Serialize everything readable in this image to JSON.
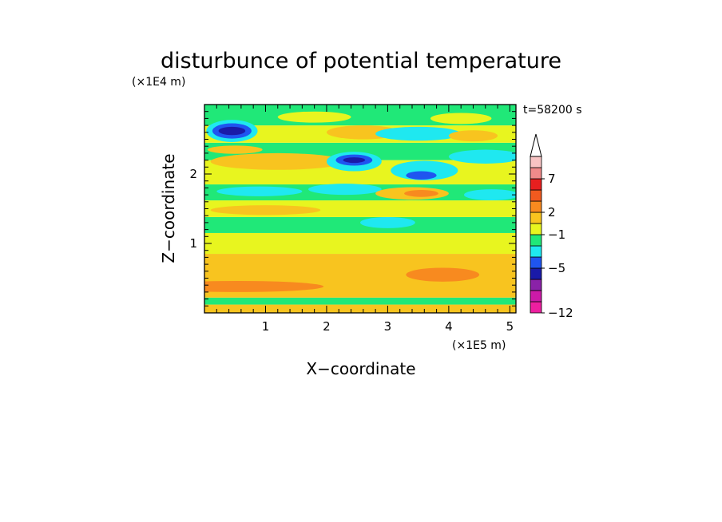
{
  "chart_data": {
    "type": "heatmap",
    "title": "disturbunce of potential temperature",
    "time_label": "t=58200 s",
    "xlabel": "X−coordinate",
    "ylabel": "Z−coordinate",
    "x_scale_label": "(×1E5 m)",
    "y_scale_label": "(×1E4 m)",
    "xlim": [
      0,
      5.1
    ],
    "ylim": [
      0,
      3.0
    ],
    "x_ticks": [
      {
        "value": 1,
        "label": "1"
      },
      {
        "value": 2,
        "label": "2"
      },
      {
        "value": 3,
        "label": "3"
      },
      {
        "value": 4,
        "label": "4"
      },
      {
        "value": 5,
        "label": "5"
      }
    ],
    "y_ticks": [
      {
        "value": 1,
        "label": "1"
      },
      {
        "value": 2,
        "label": "2"
      }
    ],
    "colorbar": {
      "levels": [
        {
          "color": "#ee1fa0"
        },
        {
          "color": "#cc1aa8"
        },
        {
          "color": "#8a22a8"
        },
        {
          "color": "#1a1aa8"
        },
        {
          "color": "#1f55f0"
        },
        {
          "color": "#1fe8f0"
        },
        {
          "color": "#20e878"
        },
        {
          "color": "#e8f51f"
        },
        {
          "color": "#f8c41f"
        },
        {
          "color": "#f88a1f"
        },
        {
          "color": "#f05a1f"
        },
        {
          "color": "#e81f1f"
        },
        {
          "color": "#f08a8a"
        },
        {
          "color": "#f8c4c4"
        }
      ],
      "labels": [
        {
          "boundary": 0,
          "label": "−12"
        },
        {
          "boundary": 4,
          "label": "−5"
        },
        {
          "boundary": 7,
          "label": "−1"
        },
        {
          "boundary": 9,
          "label": "2"
        },
        {
          "boundary": 12,
          "label": "7"
        }
      ],
      "extend": "max"
    },
    "bands": [
      {
        "y": [
          0.0,
          0.12
        ],
        "color": "#f8c41f"
      },
      {
        "y": [
          0.12,
          0.22
        ],
        "color": "#20e878"
      },
      {
        "y": [
          0.22,
          0.85
        ],
        "color": "#f8c41f"
      },
      {
        "y": [
          0.85,
          1.15
        ],
        "color": "#e8f51f"
      },
      {
        "y": [
          1.15,
          1.38
        ],
        "color": "#20e878"
      },
      {
        "y": [
          1.38,
          1.62
        ],
        "color": "#e8f51f"
      },
      {
        "y": [
          1.62,
          1.85
        ],
        "color": "#20e878"
      },
      {
        "y": [
          1.85,
          2.2
        ],
        "color": "#e8f51f"
      },
      {
        "y": [
          2.2,
          2.45
        ],
        "color": "#20e878"
      },
      {
        "y": [
          2.45,
          2.7
        ],
        "color": "#e8f51f"
      },
      {
        "y": [
          2.7,
          3.0
        ],
        "color": "#20e878"
      }
    ],
    "blobs": [
      {
        "x": 0.55,
        "y": 0.38,
        "rx": 1.4,
        "ry": 0.08,
        "color": "#f88a1f"
      },
      {
        "x": 3.9,
        "y": 0.55,
        "rx": 0.6,
        "ry": 0.1,
        "color": "#f88a1f"
      },
      {
        "x": 1.0,
        "y": 1.48,
        "rx": 0.9,
        "ry": 0.07,
        "color": "#f8c41f"
      },
      {
        "x": 3.0,
        "y": 1.3,
        "rx": 0.45,
        "ry": 0.08,
        "color": "#1fe8f0"
      },
      {
        "x": 0.9,
        "y": 1.75,
        "rx": 0.7,
        "ry": 0.07,
        "color": "#1fe8f0"
      },
      {
        "x": 2.3,
        "y": 1.78,
        "rx": 0.6,
        "ry": 0.08,
        "color": "#1fe8f0"
      },
      {
        "x": 3.4,
        "y": 1.72,
        "rx": 0.6,
        "ry": 0.09,
        "color": "#f8c41f"
      },
      {
        "x": 3.55,
        "y": 1.72,
        "rx": 0.28,
        "ry": 0.05,
        "color": "#f88a1f"
      },
      {
        "x": 4.7,
        "y": 1.7,
        "rx": 0.45,
        "ry": 0.08,
        "color": "#1fe8f0"
      },
      {
        "x": 1.2,
        "y": 2.18,
        "rx": 1.1,
        "ry": 0.12,
        "color": "#f8c41f"
      },
      {
        "x": 3.6,
        "y": 2.05,
        "rx": 0.55,
        "ry": 0.14,
        "color": "#1fe8f0"
      },
      {
        "x": 3.55,
        "y": 1.98,
        "rx": 0.25,
        "ry": 0.06,
        "color": "#1f55f0"
      },
      {
        "x": 2.45,
        "y": 2.18,
        "rx": 0.45,
        "ry": 0.14,
        "color": "#1fe8f0"
      },
      {
        "x": 2.45,
        "y": 2.2,
        "rx": 0.3,
        "ry": 0.08,
        "color": "#1f55f0"
      },
      {
        "x": 2.45,
        "y": 2.2,
        "rx": 0.18,
        "ry": 0.04,
        "color": "#1a1aa8"
      },
      {
        "x": 4.6,
        "y": 2.25,
        "rx": 0.6,
        "ry": 0.1,
        "color": "#1fe8f0"
      },
      {
        "x": 0.5,
        "y": 2.35,
        "rx": 0.45,
        "ry": 0.06,
        "color": "#f8c41f"
      },
      {
        "x": 2.6,
        "y": 2.6,
        "rx": 0.6,
        "ry": 0.1,
        "color": "#f8c41f"
      },
      {
        "x": 3.5,
        "y": 2.58,
        "rx": 0.7,
        "ry": 0.1,
        "color": "#1fe8f0"
      },
      {
        "x": 4.4,
        "y": 2.55,
        "rx": 0.4,
        "ry": 0.08,
        "color": "#f8c41f"
      },
      {
        "x": 0.45,
        "y": 2.62,
        "rx": 0.42,
        "ry": 0.16,
        "color": "#1fe8f0"
      },
      {
        "x": 0.45,
        "y": 2.62,
        "rx": 0.32,
        "ry": 0.11,
        "color": "#1f55f0"
      },
      {
        "x": 0.45,
        "y": 2.62,
        "rx": 0.22,
        "ry": 0.06,
        "color": "#1a1aa8"
      },
      {
        "x": 1.8,
        "y": 2.82,
        "rx": 0.6,
        "ry": 0.08,
        "color": "#e8f51f"
      },
      {
        "x": 4.2,
        "y": 2.8,
        "rx": 0.5,
        "ry": 0.08,
        "color": "#e8f51f"
      }
    ]
  }
}
